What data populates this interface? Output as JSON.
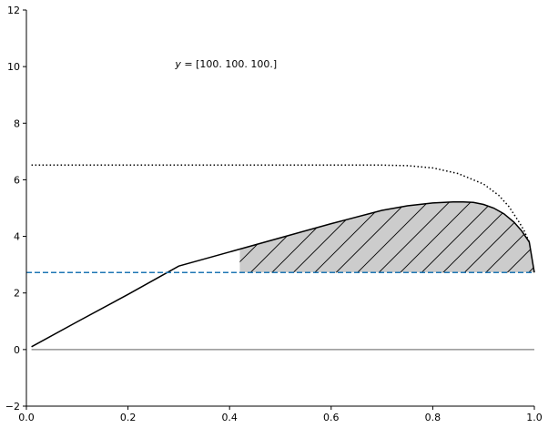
{
  "chart_data": {
    "type": "line",
    "title": "",
    "xlabel": "",
    "ylabel": "",
    "xlim": [
      0.0,
      1.0
    ],
    "ylim": [
      -2,
      12
    ],
    "x_ticks": [
      "0.0",
      "0.2",
      "0.4",
      "0.6",
      "0.8",
      "1.0"
    ],
    "y_ticks": [
      "−2",
      "0",
      "2",
      "4",
      "6",
      "8",
      "10",
      "12"
    ],
    "grid": false,
    "legend": "none",
    "annotation": {
      "text": "y = [100. 100. 100.]",
      "prefix": "y",
      "suffix": " = [100. 100. 100.]",
      "x": 0.3,
      "y": 10.0
    },
    "series": [
      {
        "style": "solid",
        "color": "#000000",
        "x": [
          0.01,
          0.1,
          0.2,
          0.3,
          0.4,
          0.5,
          0.6,
          0.7,
          0.75,
          0.8,
          0.84,
          0.86,
          0.88,
          0.9,
          0.92,
          0.94,
          0.96,
          0.975,
          0.99,
          1.0
        ],
        "y": [
          0.1,
          0.98,
          1.95,
          2.95,
          3.45,
          3.95,
          4.45,
          4.92,
          5.08,
          5.18,
          5.22,
          5.22,
          5.2,
          5.13,
          5.0,
          4.8,
          4.5,
          4.2,
          3.8,
          2.72
        ]
      },
      {
        "style": "dotted",
        "color": "#000000",
        "x": [
          0.01,
          0.2,
          0.4,
          0.6,
          0.7,
          0.75,
          0.8,
          0.85,
          0.9,
          0.93,
          0.95,
          0.97,
          0.98,
          0.99
        ],
        "y": [
          6.52,
          6.52,
          6.52,
          6.52,
          6.52,
          6.5,
          6.42,
          6.22,
          5.85,
          5.45,
          5.05,
          4.5,
          4.2,
          3.8
        ]
      },
      {
        "style": "dashed",
        "color": "#1f77b4",
        "x": [
          0.0,
          1.0
        ],
        "y": [
          2.72,
          2.72
        ]
      },
      {
        "style": "solid",
        "color": "#808080",
        "x": [
          0.01,
          1.0
        ],
        "y": [
          0.0,
          0.0
        ]
      }
    ],
    "filled_region": {
      "between": "solid curve and dashed line",
      "x_range": [
        0.42,
        1.0
      ],
      "facecolor": "#cccccc",
      "hatch": "/",
      "edgecolor": "#000000"
    }
  }
}
